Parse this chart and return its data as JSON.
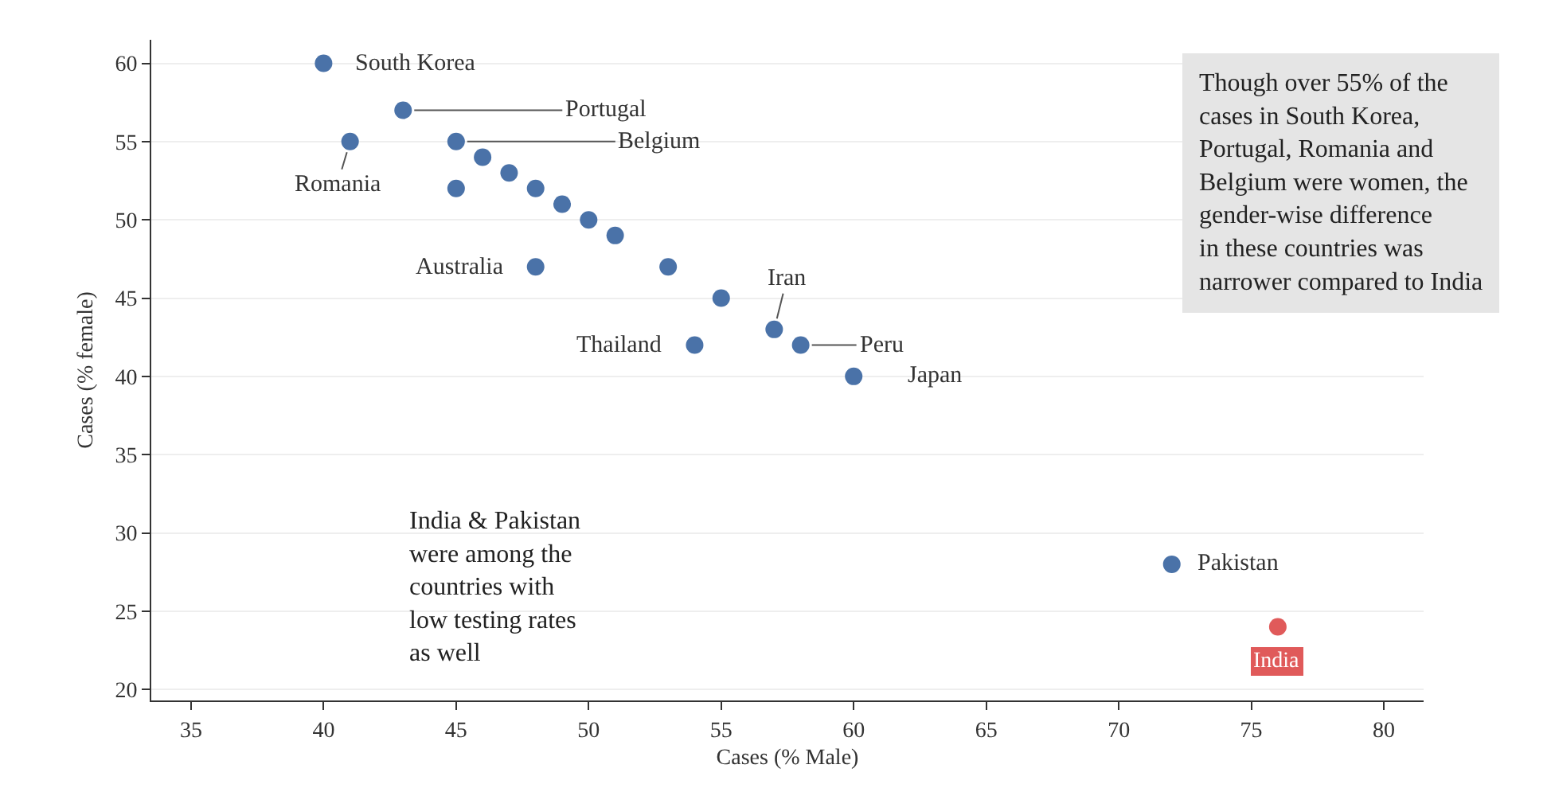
{
  "chart_data": {
    "type": "scatter",
    "xlabel": "Cases (% Male)",
    "ylabel": "Cases (% female)",
    "x": [
      40,
      43,
      41,
      45,
      46,
      47,
      45,
      48,
      49,
      50,
      51,
      48,
      53,
      55,
      57,
      54,
      58,
      60,
      72,
      76
    ],
    "values": [
      60,
      57,
      55,
      55,
      54,
      53,
      52,
      52,
      51,
      50,
      49,
      47,
      47,
      45,
      43,
      42,
      42,
      40,
      28,
      24
    ],
    "color": "#4a72a8",
    "colors": [
      "#4a72a8",
      "#4a72a8",
      "#4a72a8",
      "#4a72a8",
      "#4a72a8",
      "#4a72a8",
      "#4a72a8",
      "#4a72a8",
      "#4a72a8",
      "#4a72a8",
      "#4a72a8",
      "#4a72a8",
      "#4a72a8",
      "#4a72a8",
      "#4a72a8",
      "#4a72a8",
      "#4a72a8",
      "#4a72a8",
      "#4a72a8",
      "#e05a5a"
    ],
    "xlim": [
      33.5,
      81.5
    ],
    "xticks": [
      35,
      40,
      45,
      50,
      55,
      60,
      65,
      70,
      75,
      80
    ],
    "ylim": [
      19.3,
      61.5
    ],
    "yticks": [
      20,
      25,
      30,
      35,
      40,
      45,
      50,
      55,
      60
    ],
    "grid": "y",
    "marker": "circle",
    "legend": false,
    "annotations": [
      {
        "text": "South Korea",
        "x": 40,
        "y": 60
      },
      {
        "text": "Portugal",
        "x": 43,
        "y": 57
      },
      {
        "text": "Belgium",
        "x": 45,
        "y": 55
      },
      {
        "text": "Romania",
        "x": 41,
        "y": 55
      },
      {
        "text": "Australia",
        "x": 48,
        "y": 47
      },
      {
        "text": "Iran",
        "x": 57,
        "y": 43
      },
      {
        "text": "Thailand",
        "x": 54,
        "y": 42
      },
      {
        "text": "Peru",
        "x": 58,
        "y": 42
      },
      {
        "text": "Japan",
        "x": 60,
        "y": 40
      },
      {
        "text": "Pakistan",
        "x": 72,
        "y": 28
      },
      {
        "text": "India",
        "x": 76,
        "y": 24
      },
      "Though over 55% of the\ncases in South Korea,\nPortugal, Romania and\nBelgium were women, the\ngender-wise difference\nin these countries was\nnarrower compared to India",
      "India & Pakistan\nwere among the\ncountries with\nlow testing rates\nas well"
    ]
  }
}
